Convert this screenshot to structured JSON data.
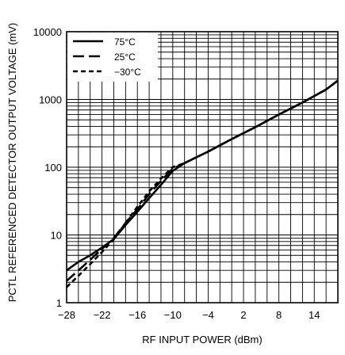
{
  "chart_data": {
    "type": "line",
    "title": "",
    "xlabel": "RF INPUT POWER (dBm)",
    "ylabel": "PCTL REFERENCED DETECTOR OUTPUT VOLTAGE (mV)",
    "xlim": [
      -28,
      18
    ],
    "ylim": [
      1,
      10000
    ],
    "yscale": "log",
    "grid": true,
    "legend_position": "top-left",
    "x_ticks": [
      -28,
      -22,
      -16,
      -10,
      -4,
      2,
      8,
      14
    ],
    "x_tick_labels": [
      "−28",
      "−22",
      "−16",
      "−10",
      "−4",
      "2",
      "8",
      "14"
    ],
    "y_ticks": [
      1,
      10,
      100,
      1000,
      10000
    ],
    "y_tick_labels": [
      "1",
      "10",
      "100",
      "1000",
      "10000"
    ],
    "series": [
      {
        "name": "75°C",
        "style": "solid",
        "x": [
          -28,
          -26,
          -24,
          -22,
          -20,
          -18,
          -16,
          -14,
          -12,
          -10,
          -8,
          -6,
          -4,
          0,
          4,
          8,
          12,
          16,
          18
        ],
        "y": [
          3.0,
          4.0,
          5.0,
          6.5,
          8.7,
          14,
          22,
          35,
          55,
          88,
          115,
          140,
          170,
          260,
          390,
          600,
          900,
          1400,
          1900
        ]
      },
      {
        "name": "25°C",
        "style": "long-dash",
        "x": [
          -28,
          -26,
          -24,
          -22,
          -20,
          -18,
          -16,
          -14,
          -12,
          -10,
          -8,
          -6,
          -4,
          0,
          4,
          8,
          12,
          16,
          18
        ],
        "y": [
          2.1,
          3.0,
          4.3,
          6.2,
          9.0,
          15,
          24,
          40,
          63,
          95,
          115,
          140,
          170,
          260,
          390,
          600,
          900,
          1400,
          1900
        ]
      },
      {
        "name": "−30°C",
        "style": "short-dash",
        "x": [
          -28,
          -26,
          -24,
          -22,
          -20,
          -18,
          -16,
          -14,
          -12,
          -10,
          -8,
          -6,
          -4,
          0,
          4,
          8,
          12,
          16,
          18
        ],
        "y": [
          1.7,
          2.5,
          3.7,
          5.6,
          8.6,
          15,
          26,
          44,
          68,
          100,
          115,
          140,
          170,
          260,
          390,
          600,
          900,
          1400,
          1900
        ]
      }
    ]
  }
}
